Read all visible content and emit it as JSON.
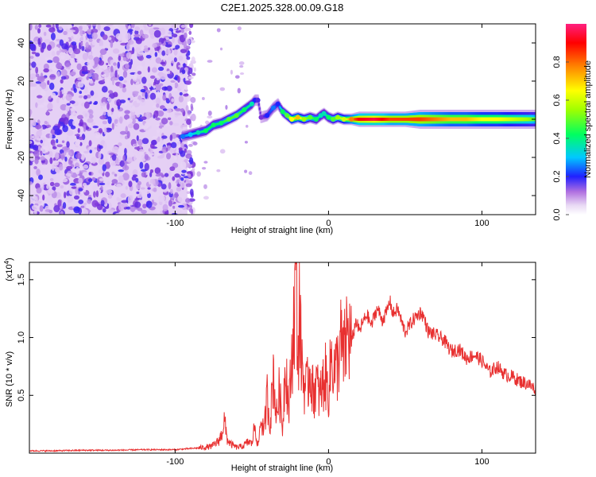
{
  "chart_data": [
    {
      "type": "heatmap",
      "title": "C2E1.2025.328.00.09.G18",
      "xlabel": "Height of straight line (km)",
      "ylabel": "Frequency (Hz)",
      "xlim": [
        -195,
        135
      ],
      "ylim": [
        -50,
        50
      ],
      "x_ticks": [
        -100,
        0,
        100
      ],
      "x_tick_labels": [
        "-100",
        "0",
        "100"
      ],
      "y_ticks": [
        -40,
        -20,
        0,
        20,
        40
      ],
      "y_tick_labels": [
        "-40",
        "-20",
        "0",
        "20",
        "40"
      ],
      "colorbar": {
        "label": "Normalized spectral amplitude",
        "range": [
          0,
          1
        ],
        "ticks": [
          0.0,
          0.2,
          0.4,
          0.6,
          0.8
        ],
        "tick_labels": [
          "0.0",
          "0.2",
          "0.4",
          "0.6",
          "0.8"
        ],
        "colormap": [
          "#ffffff",
          "#d8b8f0",
          "#7a30d8",
          "#2020ff",
          "#00c8ff",
          "#00ff60",
          "#a0ff00",
          "#ffff00",
          "#ff8000",
          "#ff0000",
          "#ff2080"
        ]
      },
      "noise_region": {
        "x_range": [
          -195,
          -92
        ],
        "f_range": [
          -50,
          50
        ],
        "mean_amplitude": 0.12
      },
      "ridge": {
        "x": [
          -95,
          -90,
          -85,
          -80,
          -75,
          -70,
          -65,
          -60,
          -55,
          -50,
          -48,
          -46,
          -44,
          -40,
          -36,
          -33,
          -30,
          -27,
          -24,
          -20,
          -16,
          -12,
          -8,
          -5,
          -3,
          0,
          3,
          6,
          10,
          15,
          20,
          30,
          40,
          50,
          60,
          70,
          80,
          90,
          100,
          110,
          120,
          130,
          135
        ],
        "f": [
          -9,
          -8,
          -7,
          -6,
          -3,
          -2,
          0,
          2,
          5,
          8,
          10,
          10,
          1,
          2,
          6,
          8,
          4,
          2,
          0,
          1,
          0,
          1,
          0,
          2,
          3,
          1,
          0,
          1,
          0,
          0,
          0,
          0,
          0,
          0,
          0,
          0,
          0,
          0,
          0,
          0,
          0,
          0,
          0
        ],
        "amplitude": [
          0.35,
          0.4,
          0.45,
          0.5,
          0.5,
          0.5,
          0.55,
          0.55,
          0.5,
          0.45,
          0.3,
          0.25,
          0.2,
          0.3,
          0.35,
          0.3,
          0.5,
          0.55,
          0.7,
          0.75,
          0.6,
          0.55,
          0.5,
          0.45,
          0.45,
          0.5,
          0.55,
          0.6,
          0.65,
          0.8,
          0.9,
          0.95,
          0.85,
          0.85,
          0.85,
          0.8,
          0.75,
          0.75,
          0.7,
          0.7,
          0.65,
          0.6,
          0.55
        ],
        "bandwidth_hz": [
          3,
          3,
          3,
          3,
          3,
          3,
          3,
          3,
          3,
          3,
          3,
          3,
          3,
          3,
          3,
          3,
          3,
          3,
          3,
          3,
          3,
          3,
          3,
          3,
          3,
          3,
          3,
          3,
          3,
          3,
          4,
          4,
          4,
          4,
          5,
          5,
          5,
          5,
          5,
          5,
          5,
          5,
          5
        ]
      }
    },
    {
      "type": "line",
      "xlabel": "Height of straight line (km)",
      "ylabel": "SNR (10 * v/v)",
      "y_multiplier": "(x10⁴)",
      "y_multiplier_base": "(x10",
      "y_multiplier_exp": "4",
      "y_multiplier_close": ")",
      "xlim": [
        -195,
        135
      ],
      "ylim": [
        0,
        1.65
      ],
      "x_ticks": [
        -100,
        0,
        100
      ],
      "x_tick_labels": [
        "-100",
        "0",
        "100"
      ],
      "y_ticks": [
        0.5,
        1.0,
        1.5
      ],
      "y_tick_labels": [
        "0.5",
        "1.0",
        "1.5"
      ],
      "color": "#e83030",
      "series": [
        {
          "name": "SNR",
          "x": [
            -195,
            -180,
            -160,
            -140,
            -120,
            -100,
            -90,
            -80,
            -76,
            -72,
            -70,
            -68,
            -66,
            -64,
            -60,
            -56,
            -52,
            -50,
            -48,
            -46,
            -44,
            -42,
            -40,
            -38,
            -36,
            -34,
            -32,
            -30,
            -28,
            -26,
            -24,
            -22,
            -21,
            -20,
            -19,
            -18,
            -16,
            -14,
            -12,
            -10,
            -8,
            -6,
            -4,
            -2,
            0,
            2,
            4,
            6,
            8,
            10,
            12,
            15,
            18,
            20,
            22,
            25,
            28,
            30,
            32,
            35,
            38,
            40,
            42,
            45,
            48,
            50,
            55,
            60,
            62,
            65,
            70,
            75,
            80,
            85,
            90,
            95,
            100,
            105,
            110,
            115,
            120,
            125,
            130,
            135
          ],
          "y": [
            0.02,
            0.02,
            0.025,
            0.025,
            0.03,
            0.03,
            0.04,
            0.05,
            0.06,
            0.1,
            0.15,
            0.28,
            0.12,
            0.08,
            0.05,
            0.06,
            0.1,
            0.08,
            0.25,
            0.05,
            0.3,
            0.18,
            0.5,
            0.25,
            0.72,
            0.3,
            0.55,
            0.2,
            0.85,
            0.35,
            0.8,
            1.3,
            1.68,
            0.7,
            1.25,
            0.9,
            0.6,
            0.55,
            0.75,
            0.5,
            0.62,
            0.48,
            0.58,
            0.66,
            0.52,
            0.85,
            0.7,
            0.78,
            0.95,
            0.82,
            1.05,
            0.95,
            1.15,
            1.05,
            1.12,
            1.2,
            1.1,
            1.2,
            1.25,
            1.15,
            1.22,
            1.32,
            1.2,
            1.25,
            1.12,
            1.05,
            1.15,
            1.22,
            1.18,
            1.05,
            1.02,
            0.98,
            0.88,
            0.9,
            0.82,
            0.85,
            0.8,
            0.7,
            0.75,
            0.68,
            0.66,
            0.62,
            0.6,
            0.55
          ]
        }
      ]
    }
  ]
}
